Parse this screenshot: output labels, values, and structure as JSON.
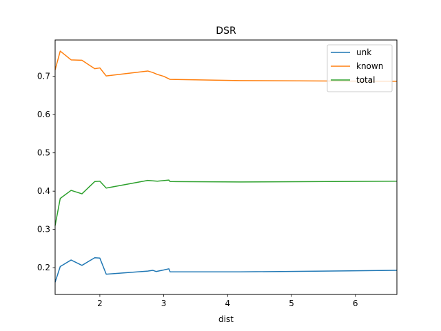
{
  "chart_data": {
    "type": "line",
    "title": "DSR",
    "xlabel": "dist",
    "ylabel": "",
    "xlim": [
      1.3,
      6.65
    ],
    "ylim": [
      0.13,
      0.795
    ],
    "xticks": [
      2,
      3,
      4,
      5,
      6
    ],
    "yticks": [
      0.2,
      0.3,
      0.4,
      0.5,
      0.6,
      0.7
    ],
    "grid": false,
    "legend_position": "top-right",
    "series": [
      {
        "name": "unk",
        "color": "#1f77b4",
        "x": [
          1.3,
          1.38,
          1.55,
          1.72,
          1.92,
          2.0,
          2.1,
          2.75,
          2.83,
          2.88,
          3.0,
          3.08,
          3.1,
          4.2,
          6.65
        ],
        "y": [
          0.162,
          0.203,
          0.22,
          0.206,
          0.226,
          0.225,
          0.183,
          0.191,
          0.193,
          0.19,
          0.194,
          0.197,
          0.189,
          0.189,
          0.193
        ]
      },
      {
        "name": "known",
        "color": "#ff7f0e",
        "x": [
          1.3,
          1.38,
          1.55,
          1.72,
          1.92,
          2.0,
          2.1,
          2.75,
          2.83,
          2.9,
          3.0,
          3.1,
          4.2,
          6.65
        ],
        "y": [
          0.717,
          0.766,
          0.743,
          0.742,
          0.72,
          0.722,
          0.701,
          0.714,
          0.71,
          0.705,
          0.7,
          0.692,
          0.689,
          0.687
        ]
      },
      {
        "name": "total",
        "color": "#2ca02c",
        "x": [
          1.3,
          1.38,
          1.55,
          1.72,
          1.92,
          2.0,
          2.1,
          2.75,
          2.83,
          2.9,
          3.08,
          3.1,
          4.2,
          6.65
        ],
        "y": [
          0.31,
          0.381,
          0.402,
          0.393,
          0.425,
          0.426,
          0.408,
          0.428,
          0.427,
          0.426,
          0.429,
          0.425,
          0.424,
          0.426
        ]
      }
    ]
  }
}
